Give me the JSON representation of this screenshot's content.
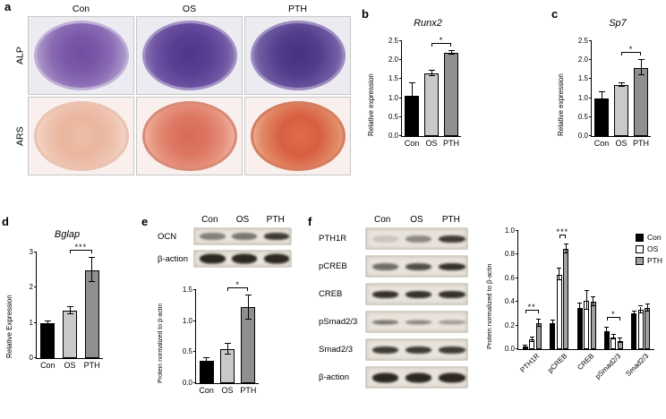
{
  "panel_a": {
    "label": "a",
    "col_headers": [
      "Con",
      "OS",
      "PTH"
    ],
    "row_labels": [
      "ALP",
      "ARS"
    ]
  },
  "panel_b": {
    "label": "b"
  },
  "panel_c": {
    "label": "c"
  },
  "panel_d": {
    "label": "d"
  },
  "panel_e": {
    "label": "e",
    "blot": {
      "col_headers": [
        "Con",
        "OS",
        "PTH"
      ],
      "rows": [
        {
          "label": "OCN",
          "bands": [
            0.5,
            0.55,
            0.85
          ]
        },
        {
          "label": "β-action",
          "bands": [
            0.95,
            0.95,
            0.95
          ]
        }
      ]
    }
  },
  "panel_f": {
    "label": "f",
    "blot": {
      "col_headers": [
        "Con",
        "OS",
        "PTH"
      ],
      "rows": [
        {
          "label": "PTH1R",
          "bands": [
            0.15,
            0.45,
            0.85
          ]
        },
        {
          "label": "pCREB",
          "bands": [
            0.6,
            0.75,
            0.9
          ]
        },
        {
          "label": "CREB",
          "bands": [
            0.9,
            0.9,
            0.9
          ]
        },
        {
          "label": "pSmad2/3",
          "bands": [
            0.55,
            0.45,
            0.35
          ]
        },
        {
          "label": "Smad2/3",
          "bands": [
            0.85,
            0.85,
            0.85
          ]
        },
        {
          "label": "β-action",
          "bands": [
            0.95,
            0.95,
            0.95
          ]
        }
      ]
    }
  },
  "chart_data": [
    {
      "id": "b_runx2",
      "type": "bar",
      "title": "Runx2",
      "ylabel": "Relative expression",
      "xlabel": "",
      "categories": [
        "Con",
        "OS",
        "PTH"
      ],
      "values": [
        1.05,
        1.65,
        2.2
      ],
      "errors": [
        0.35,
        0.07,
        0.05
      ],
      "ylim": [
        0,
        2.5
      ],
      "yticks": [
        "0.0",
        "0.5",
        "1.0",
        "1.5",
        "2.0",
        "2.5"
      ],
      "bar_colors": [
        "#000000",
        "#c9c9c9",
        "#8f8f8f"
      ],
      "significance": [
        {
          "from": 1,
          "to": 2,
          "label": "*"
        }
      ]
    },
    {
      "id": "c_sp7",
      "type": "bar",
      "title": "Sp7",
      "ylabel": "Relative expression",
      "xlabel": "",
      "categories": [
        "Con",
        "OS",
        "PTH"
      ],
      "values": [
        1.0,
        1.35,
        1.8
      ],
      "errors": [
        0.15,
        0.05,
        0.2
      ],
      "ylim": [
        0,
        2.5
      ],
      "yticks": [
        "0.0",
        "0.5",
        "1.0",
        "1.5",
        "2.0",
        "2.5"
      ],
      "bar_colors": [
        "#000000",
        "#c9c9c9",
        "#8f8f8f"
      ],
      "significance": [
        {
          "from": 1,
          "to": 2,
          "label": "*"
        }
      ]
    },
    {
      "id": "d_bglap",
      "type": "bar",
      "title": "Bglap",
      "ylabel": "Relative Expression",
      "xlabel": "",
      "categories": [
        "Con",
        "OS",
        "PTH"
      ],
      "values": [
        1.0,
        1.35,
        2.5
      ],
      "errors": [
        0.05,
        0.1,
        0.35
      ],
      "ylim": [
        0,
        3
      ],
      "yticks": [
        "0",
        "1",
        "2",
        "3"
      ],
      "bar_colors": [
        "#000000",
        "#c9c9c9",
        "#8f8f8f"
      ],
      "significance": [
        {
          "from": 1,
          "to": 2,
          "label": "***"
        }
      ]
    },
    {
      "id": "e_ocn",
      "type": "bar",
      "title": "",
      "ylabel": "Protein normalized to β-actin",
      "xlabel": "",
      "categories": [
        "Con",
        "OS",
        "PTH"
      ],
      "values": [
        0.36,
        0.55,
        1.22
      ],
      "errors": [
        0.05,
        0.09,
        0.2
      ],
      "ylim": [
        0,
        1.5
      ],
      "yticks": [
        "0.0",
        "0.5",
        "1.0",
        "1.5"
      ],
      "bar_colors": [
        "#000000",
        "#c9c9c9",
        "#8f8f8f"
      ],
      "significance": [
        {
          "from": 1,
          "to": 2,
          "label": "*"
        }
      ]
    },
    {
      "id": "f_proteins",
      "type": "grouped_bar",
      "title": "",
      "ylabel": "Protein normalized to β-actin",
      "xlabel": "",
      "categories": [
        "PTH1R",
        "pCREB",
        "CREB",
        "pSmad2/3",
        "Smad2/3"
      ],
      "series": [
        {
          "name": "Con",
          "color": "#000000",
          "values": [
            0.02,
            0.22,
            0.35,
            0.15,
            0.3
          ],
          "errors": [
            0.01,
            0.02,
            0.04,
            0.03,
            0.02
          ]
        },
        {
          "name": "OS",
          "color": "#ffffff",
          "values": [
            0.08,
            0.63,
            0.41,
            0.1,
            0.33
          ],
          "errors": [
            0.02,
            0.05,
            0.08,
            0.02,
            0.03
          ]
        },
        {
          "name": "PTH",
          "color": "#a0a0a0",
          "values": [
            0.22,
            0.85,
            0.4,
            0.07,
            0.35
          ],
          "errors": [
            0.03,
            0.04,
            0.04,
            0.02,
            0.03
          ]
        }
      ],
      "ylim": [
        0,
        1.0
      ],
      "yticks": [
        "0.0",
        "0.2",
        "0.4",
        "0.6",
        "0.8",
        "1.0"
      ],
      "legend_position": "top-right",
      "significance": [
        {
          "group": 0,
          "from": 0,
          "to": 2,
          "label": "**",
          "y": 0.3
        },
        {
          "group": 1,
          "from": 1,
          "to": 2,
          "label": "***",
          "y": 0.94
        },
        {
          "group": 3,
          "from": 0,
          "to": 2,
          "label": "*",
          "y": 0.24
        }
      ]
    }
  ]
}
